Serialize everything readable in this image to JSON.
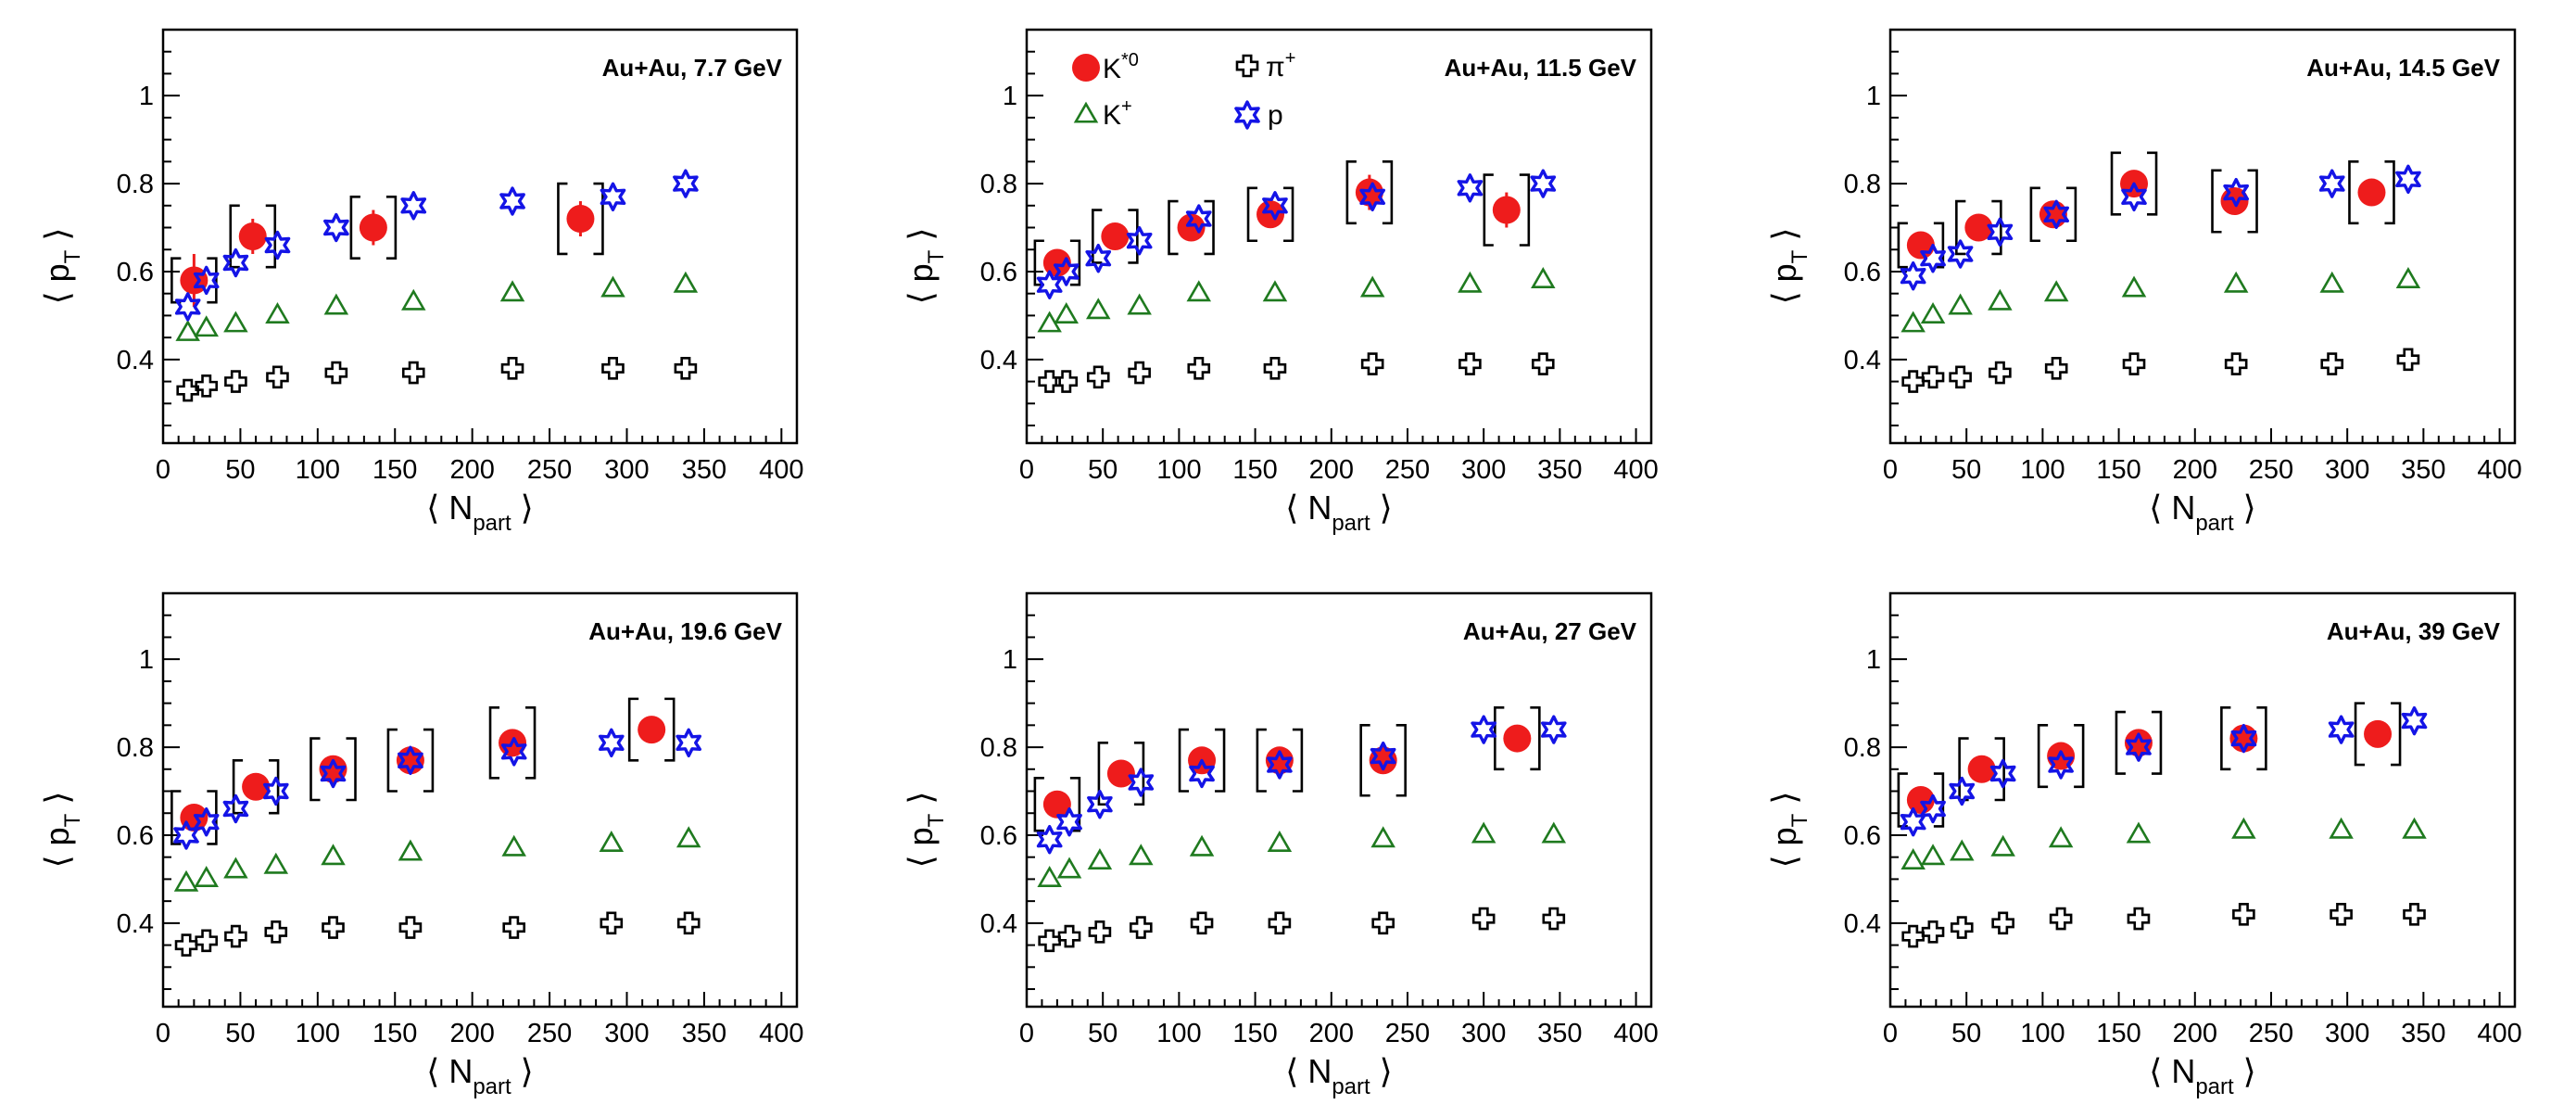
{
  "colors": {
    "kstar": "#ee1c1c",
    "kplus": "#1f7a1f",
    "pion": "#000000",
    "proton": "#1414e6",
    "axis": "#000000"
  },
  "legend": {
    "kstar_main": "K",
    "kstar_sup": "*0",
    "kplus_main": "K",
    "kplus_sup": "+",
    "pion_main": "π",
    "pion_sup": "+",
    "proton": "p"
  },
  "chart_data": [
    {
      "type": "scatter",
      "label": "Au+Au, 7.7 GeV",
      "xlabel": "N",
      "xlabel_sub": "part",
      "ylabel": "p",
      "ylabel_sub": "T",
      "xlim": [
        0,
        410
      ],
      "ylim": [
        0.21,
        1.15
      ],
      "xticks": [
        0,
        50,
        100,
        150,
        200,
        250,
        300,
        350,
        400
      ],
      "yticks": [
        0.4,
        0.6,
        0.8,
        1
      ],
      "ytick_labels": [
        "0.4",
        "0.6",
        "0.8",
        "1"
      ],
      "series": [
        {
          "name": "K*0",
          "marker": "circle",
          "x": [
            20,
            58,
            136,
            270
          ],
          "y": [
            0.58,
            0.68,
            0.7,
            0.72
          ],
          "stat_err": [
            0.06,
            0.04,
            0.04,
            0.04
          ],
          "sys_err": [
            0.05,
            0.07,
            0.07,
            0.08
          ]
        },
        {
          "name": "K+",
          "marker": "triangle",
          "x": [
            16,
            28,
            47,
            74,
            112,
            162,
            226,
            291,
            338
          ],
          "y": [
            0.46,
            0.47,
            0.48,
            0.5,
            0.52,
            0.53,
            0.55,
            0.56,
            0.57
          ]
        },
        {
          "name": "π+",
          "marker": "cross",
          "x": [
            16,
            28,
            47,
            74,
            112,
            162,
            226,
            291,
            338
          ],
          "y": [
            0.33,
            0.34,
            0.35,
            0.36,
            0.37,
            0.37,
            0.38,
            0.38,
            0.38
          ]
        },
        {
          "name": "p",
          "marker": "star",
          "x": [
            16,
            28,
            47,
            74,
            112,
            162,
            226,
            291,
            338
          ],
          "y": [
            0.52,
            0.58,
            0.62,
            0.66,
            0.7,
            0.75,
            0.76,
            0.77,
            0.8
          ]
        }
      ]
    },
    {
      "type": "scatter",
      "label": "Au+Au, 11.5 GeV",
      "xlabel": "N",
      "xlabel_sub": "part",
      "ylabel": "p",
      "ylabel_sub": "T",
      "xlim": [
        0,
        410
      ],
      "ylim": [
        0.21,
        1.15
      ],
      "xticks": [
        0,
        50,
        100,
        150,
        200,
        250,
        300,
        350,
        400
      ],
      "yticks": [
        0.4,
        0.6,
        0.8,
        1
      ],
      "ytick_labels": [
        "0.4",
        "0.6",
        "0.8",
        "1"
      ],
      "series": [
        {
          "name": "K*0",
          "marker": "circle",
          "x": [
            20,
            58,
            108,
            160,
            225,
            315
          ],
          "y": [
            0.62,
            0.68,
            0.7,
            0.73,
            0.78,
            0.74
          ],
          "stat_err": [
            0.03,
            0.03,
            0.03,
            0.03,
            0.04,
            0.04
          ],
          "sys_err": [
            0.05,
            0.06,
            0.06,
            0.06,
            0.07,
            0.08
          ]
        },
        {
          "name": "K+",
          "marker": "triangle",
          "x": [
            15,
            26,
            47,
            74,
            113,
            163,
            227,
            291,
            339
          ],
          "y": [
            0.48,
            0.5,
            0.51,
            0.52,
            0.55,
            0.55,
            0.56,
            0.57,
            0.58
          ]
        },
        {
          "name": "π+",
          "marker": "cross",
          "x": [
            15,
            26,
            47,
            74,
            113,
            163,
            227,
            291,
            339
          ],
          "y": [
            0.35,
            0.35,
            0.36,
            0.37,
            0.38,
            0.38,
            0.39,
            0.39,
            0.39
          ]
        },
        {
          "name": "p",
          "marker": "star",
          "x": [
            15,
            26,
            47,
            74,
            113,
            163,
            227,
            291,
            339
          ],
          "y": [
            0.57,
            0.6,
            0.63,
            0.67,
            0.72,
            0.75,
            0.77,
            0.79,
            0.8
          ]
        }
      ]
    },
    {
      "type": "scatter",
      "label": "Au+Au, 14.5 GeV",
      "xlabel": "N",
      "xlabel_sub": "part",
      "ylabel": "p",
      "ylabel_sub": "T",
      "xlim": [
        0,
        410
      ],
      "ylim": [
        0.21,
        1.15
      ],
      "xticks": [
        0,
        50,
        100,
        150,
        200,
        250,
        300,
        350,
        400
      ],
      "yticks": [
        0.4,
        0.6,
        0.8,
        1
      ],
      "ytick_labels": [
        "0.4",
        "0.6",
        "0.8",
        "1"
      ],
      "series": [
        {
          "name": "K*0",
          "marker": "circle",
          "x": [
            20,
            58,
            107,
            160,
            226,
            316
          ],
          "y": [
            0.66,
            0.7,
            0.73,
            0.8,
            0.76,
            0.78
          ],
          "stat_err": [
            0.03,
            0.03,
            0.03,
            0.03,
            0.03,
            0.03
          ],
          "sys_err": [
            0.05,
            0.06,
            0.06,
            0.07,
            0.07,
            0.07
          ]
        },
        {
          "name": "K+",
          "marker": "triangle",
          "x": [
            15,
            28,
            46,
            72,
            109,
            160,
            227,
            290,
            340
          ],
          "y": [
            0.48,
            0.5,
            0.52,
            0.53,
            0.55,
            0.56,
            0.57,
            0.57,
            0.58
          ]
        },
        {
          "name": "π+",
          "marker": "cross",
          "x": [
            15,
            28,
            46,
            72,
            109,
            160,
            227,
            290,
            340
          ],
          "y": [
            0.35,
            0.36,
            0.36,
            0.37,
            0.38,
            0.39,
            0.39,
            0.39,
            0.4
          ]
        },
        {
          "name": "p",
          "marker": "star",
          "x": [
            15,
            28,
            46,
            72,
            109,
            160,
            227,
            290,
            340
          ],
          "y": [
            0.59,
            0.63,
            0.64,
            0.69,
            0.73,
            0.77,
            0.78,
            0.8,
            0.81
          ]
        }
      ]
    },
    {
      "type": "scatter",
      "label": "Au+Au, 19.6 GeV",
      "xlabel": "N",
      "xlabel_sub": "part",
      "ylabel": "p",
      "ylabel_sub": "T",
      "xlim": [
        0,
        410
      ],
      "ylim": [
        0.21,
        1.15
      ],
      "xticks": [
        0,
        50,
        100,
        150,
        200,
        250,
        300,
        350,
        400
      ],
      "yticks": [
        0.4,
        0.6,
        0.8,
        1
      ],
      "ytick_labels": [
        "0.4",
        "0.6",
        "0.8",
        "1"
      ],
      "series": [
        {
          "name": "K*0",
          "marker": "circle",
          "x": [
            20,
            60,
            110,
            160,
            226,
            316
          ],
          "y": [
            0.64,
            0.71,
            0.75,
            0.77,
            0.81,
            0.84
          ],
          "stat_err": [
            0.03,
            0.03,
            0.03,
            0.03,
            0.03,
            0.03
          ],
          "sys_err": [
            0.06,
            0.06,
            0.07,
            0.07,
            0.08,
            0.07
          ]
        },
        {
          "name": "K+",
          "marker": "triangle",
          "x": [
            15,
            28,
            47,
            73,
            110,
            160,
            227,
            290,
            340
          ],
          "y": [
            0.49,
            0.5,
            0.52,
            0.53,
            0.55,
            0.56,
            0.57,
            0.58,
            0.59
          ]
        },
        {
          "name": "π+",
          "marker": "cross",
          "x": [
            15,
            28,
            47,
            73,
            110,
            160,
            227,
            290,
            340
          ],
          "y": [
            0.35,
            0.36,
            0.37,
            0.38,
            0.39,
            0.39,
            0.39,
            0.4,
            0.4
          ]
        },
        {
          "name": "p",
          "marker": "star",
          "x": [
            15,
            28,
            47,
            73,
            110,
            160,
            227,
            290,
            340
          ],
          "y": [
            0.6,
            0.63,
            0.66,
            0.7,
            0.74,
            0.77,
            0.79,
            0.81,
            0.81
          ]
        }
      ]
    },
    {
      "type": "scatter",
      "label": "Au+Au, 27 GeV",
      "xlabel": "N",
      "xlabel_sub": "part",
      "ylabel": "p",
      "ylabel_sub": "T",
      "xlim": [
        0,
        410
      ],
      "ylim": [
        0.21,
        1.15
      ],
      "xticks": [
        0,
        50,
        100,
        150,
        200,
        250,
        300,
        350,
        400
      ],
      "yticks": [
        0.4,
        0.6,
        0.8,
        1
      ],
      "ytick_labels": [
        "0.4",
        "0.6",
        "0.8",
        "1"
      ],
      "series": [
        {
          "name": "K*0",
          "marker": "circle",
          "x": [
            20,
            62,
            115,
            166,
            234,
            322
          ],
          "y": [
            0.67,
            0.74,
            0.77,
            0.77,
            0.77,
            0.82
          ],
          "stat_err": [
            0.03,
            0.03,
            0.03,
            0.03,
            0.03,
            0.03
          ],
          "sys_err": [
            0.06,
            0.07,
            0.07,
            0.07,
            0.08,
            0.07
          ]
        },
        {
          "name": "K+",
          "marker": "triangle",
          "x": [
            15,
            28,
            48,
            75,
            115,
            166,
            234,
            300,
            346
          ],
          "y": [
            0.5,
            0.52,
            0.54,
            0.55,
            0.57,
            0.58,
            0.59,
            0.6,
            0.6
          ]
        },
        {
          "name": "π+",
          "marker": "cross",
          "x": [
            15,
            28,
            48,
            75,
            115,
            166,
            234,
            300,
            346
          ],
          "y": [
            0.36,
            0.37,
            0.38,
            0.39,
            0.4,
            0.4,
            0.4,
            0.41,
            0.41
          ]
        },
        {
          "name": "p",
          "marker": "star",
          "x": [
            15,
            28,
            48,
            75,
            115,
            166,
            234,
            300,
            346
          ],
          "y": [
            0.59,
            0.63,
            0.67,
            0.72,
            0.74,
            0.76,
            0.78,
            0.84,
            0.84
          ]
        }
      ]
    },
    {
      "type": "scatter",
      "label": "Au+Au, 39 GeV",
      "xlabel": "N",
      "xlabel_sub": "part",
      "ylabel": "p",
      "ylabel_sub": "T",
      "xlim": [
        0,
        410
      ],
      "ylim": [
        0.21,
        1.15
      ],
      "xticks": [
        0,
        50,
        100,
        150,
        200,
        250,
        300,
        350,
        400
      ],
      "yticks": [
        0.4,
        0.6,
        0.8,
        1
      ],
      "ytick_labels": [
        "0.4",
        "0.6",
        "0.8",
        "1"
      ],
      "series": [
        {
          "name": "K*0",
          "marker": "circle",
          "x": [
            20,
            60,
            112,
            163,
            232,
            320
          ],
          "y": [
            0.68,
            0.75,
            0.78,
            0.81,
            0.82,
            0.83
          ],
          "stat_err": [
            0.03,
            0.03,
            0.03,
            0.03,
            0.03,
            0.03
          ],
          "sys_err": [
            0.06,
            0.07,
            0.07,
            0.07,
            0.07,
            0.07
          ]
        },
        {
          "name": "K+",
          "marker": "triangle",
          "x": [
            15,
            28,
            47,
            74,
            112,
            163,
            232,
            296,
            344
          ],
          "y": [
            0.54,
            0.55,
            0.56,
            0.57,
            0.59,
            0.6,
            0.61,
            0.61,
            0.61
          ]
        },
        {
          "name": "π+",
          "marker": "cross",
          "x": [
            15,
            28,
            47,
            74,
            112,
            163,
            232,
            296,
            344
          ],
          "y": [
            0.37,
            0.38,
            0.39,
            0.4,
            0.41,
            0.41,
            0.42,
            0.42,
            0.42
          ]
        },
        {
          "name": "p",
          "marker": "star",
          "x": [
            15,
            28,
            47,
            74,
            112,
            163,
            232,
            296,
            344
          ],
          "y": [
            0.63,
            0.66,
            0.7,
            0.74,
            0.76,
            0.8,
            0.82,
            0.84,
            0.86
          ]
        }
      ]
    }
  ]
}
